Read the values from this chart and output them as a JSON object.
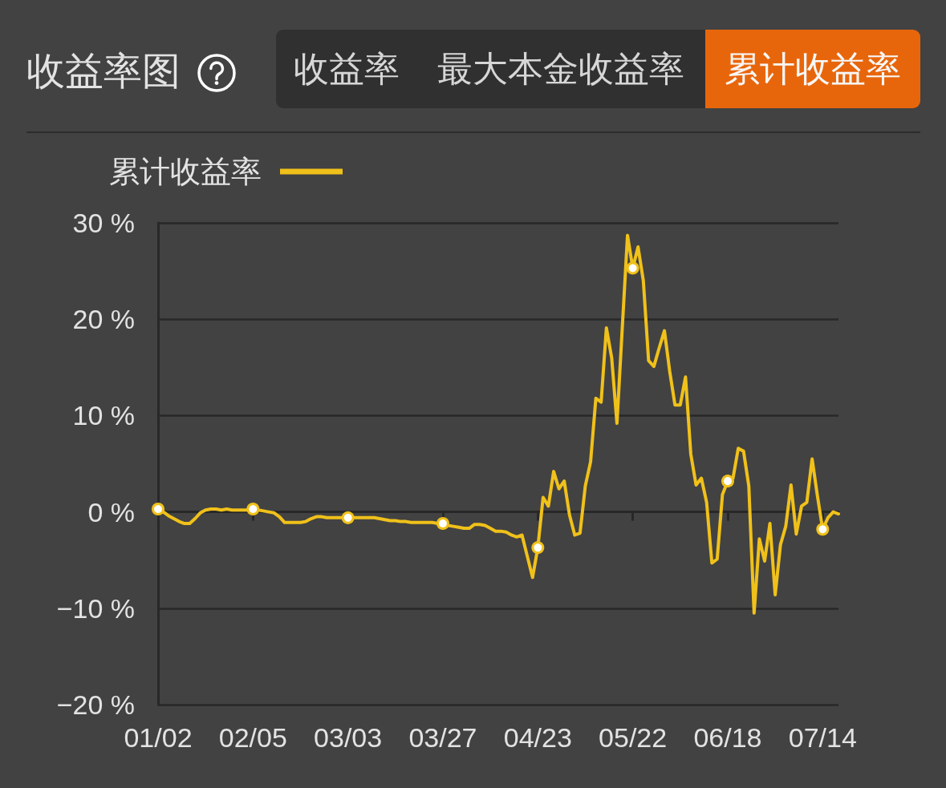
{
  "chart_data": {
    "type": "line",
    "title": "收益率图",
    "annotations": [
      "收益率",
      "最大本金收益率",
      "累计收益率"
    ],
    "categories": [
      "01/02",
      null,
      null,
      null,
      null,
      null,
      null,
      null,
      null,
      null,
      null,
      null,
      null,
      null,
      null,
      null,
      null,
      null,
      "02/05",
      null,
      null,
      null,
      null,
      null,
      null,
      null,
      null,
      null,
      null,
      null,
      null,
      null,
      null,
      null,
      null,
      null,
      "03/03",
      null,
      null,
      null,
      null,
      null,
      null,
      null,
      null,
      null,
      null,
      null,
      null,
      null,
      null,
      null,
      null,
      null,
      "03/27",
      null,
      null,
      null,
      null,
      null,
      null,
      null,
      null,
      null,
      null,
      null,
      null,
      null,
      null,
      null,
      null,
      null,
      "04/23",
      null,
      null,
      null,
      null,
      null,
      null,
      null,
      null,
      null,
      null,
      null,
      null,
      null,
      null,
      null,
      null,
      null,
      "05/22",
      null,
      null,
      null,
      null,
      null,
      null,
      null,
      null,
      null,
      null,
      null,
      null,
      null,
      null,
      null,
      null,
      null,
      "06/18",
      null,
      null,
      null,
      null,
      null,
      null,
      null,
      null,
      null,
      null,
      null,
      null,
      null,
      null,
      null,
      null,
      null,
      "07/14",
      null,
      null,
      null
    ],
    "series": [
      {
        "name": "累计收益率",
        "color": "#f0c11a",
        "values": [
          0.3,
          0,
          -0.4,
          -0.7,
          -1.0,
          -1.2,
          -1.2,
          -0.7,
          -0.1,
          0.2,
          0.3,
          0.3,
          0.2,
          0.3,
          0.2,
          0.2,
          0.2,
          0.2,
          0.3,
          0.2,
          0.1,
          0,
          -0.1,
          -0.5,
          -1.1,
          -1.1,
          -1.1,
          -1.1,
          -1.0,
          -0.7,
          -0.5,
          -0.5,
          -0.6,
          -0.6,
          -0.6,
          -0.6,
          -0.6,
          -0.6,
          -0.6,
          -0.6,
          -0.6,
          -0.6,
          -0.7,
          -0.8,
          -0.9,
          -0.9,
          -1.0,
          -1.0,
          -1.1,
          -1.1,
          -1.1,
          -1.1,
          -1.1,
          -1.2,
          -1.2,
          -1.4,
          -1.5,
          -1.6,
          -1.7,
          -1.7,
          -1.3,
          -1.3,
          -1.4,
          -1.7,
          -2.0,
          -2.0,
          -2.1,
          -2.4,
          -2.6,
          -2.4,
          -4.6,
          -6.8,
          -3.7,
          1.5,
          0.6,
          4.2,
          2.4,
          3.2,
          -0.3,
          -2.4,
          -2.2,
          2.7,
          5.2,
          11.8,
          11.4,
          19.1,
          16.0,
          9.2,
          19.0,
          28.7,
          25.3,
          27.5,
          24.0,
          15.7,
          15.1,
          17.0,
          18.8,
          14.6,
          11.1,
          11.1,
          14.0,
          6.0,
          2.8,
          3.5,
          1.0,
          -5.3,
          -4.9,
          1.8,
          3.2,
          3.5,
          6.6,
          6.3,
          2.7,
          -10.5,
          -2.8,
          -5.1,
          -1.2,
          -8.6,
          -3.4,
          -1.5,
          2.8,
          -2.3,
          0.6,
          1.0,
          5.5,
          1.7,
          -1.8,
          -0.6,
          0,
          -0.2
        ]
      },
      {
        "type": "scatter",
        "color": "#f0c11a",
        "marker": "circle",
        "x": [
          "01/02",
          "02/05",
          "03/03",
          "03/27",
          "04/23",
          "05/22",
          "06/18",
          "07/14"
        ],
        "values": [
          0.3,
          0.3,
          -0.6,
          -1.2,
          -3.7,
          25.3,
          3.2,
          -1.8
        ]
      }
    ],
    "ylim": [
      -20,
      30
    ],
    "yticks": [
      {
        "value": -20,
        "label": "−20 %"
      },
      {
        "value": -10,
        "label": "−10 %"
      },
      {
        "value": 0,
        "label": "0 %"
      },
      {
        "value": 10,
        "label": "10 %"
      },
      {
        "value": 20,
        "label": "20 %"
      },
      {
        "value": 30,
        "label": "30 %"
      }
    ],
    "grid": "y",
    "legend": "top left",
    "line_style": "solid"
  }
}
